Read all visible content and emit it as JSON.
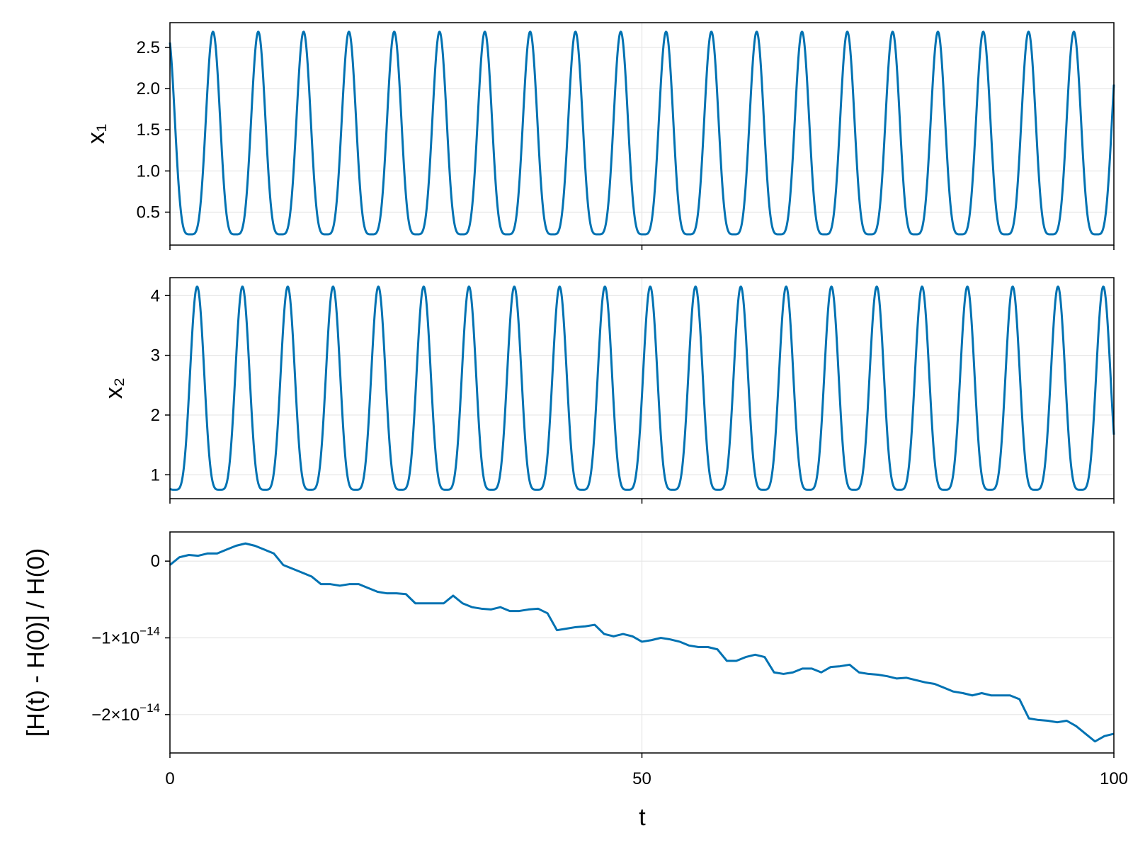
{
  "chart_data": [
    {
      "type": "line",
      "ylabel": "x₁",
      "xlabel": "",
      "xlim": [
        0,
        100
      ],
      "ylim": [
        0.1,
        2.8
      ],
      "x_ticks": [
        0,
        50,
        100
      ],
      "x_tick_labels_visible": false,
      "y_ticks": [
        0.5,
        1.0,
        1.5,
        2.0,
        2.5
      ],
      "y_tick_labels": [
        "0.5",
        "1.0",
        "1.5",
        "2.0",
        "2.5"
      ],
      "grid": true,
      "colors": {
        "line": "#0072b2"
      },
      "series": [
        {
          "model": "periodic",
          "period": 4.8,
          "x_start": 0,
          "x_end": 100,
          "y_start": 2.5,
          "min": 0.23,
          "max": 2.69,
          "phase": 0.05
        }
      ]
    },
    {
      "type": "line",
      "ylabel": "x₂",
      "xlabel": "",
      "xlim": [
        0,
        100
      ],
      "ylim": [
        0.6,
        4.3
      ],
      "x_ticks": [
        0,
        50,
        100
      ],
      "x_tick_labels_visible": false,
      "y_ticks": [
        1,
        2,
        3,
        4
      ],
      "y_tick_labels": [
        "1",
        "2",
        "3",
        "4"
      ],
      "grid": true,
      "colors": {
        "line": "#0072b2"
      },
      "series": [
        {
          "model": "periodic",
          "period": 4.8,
          "x_start": 0,
          "x_end": 100,
          "y_start": 1.0,
          "min": 0.75,
          "max": 4.15,
          "phase": 0.4
        }
      ]
    },
    {
      "type": "line",
      "ylabel": "[H(t) - H(0)] / H(0)",
      "xlabel": "t",
      "xlim": [
        0,
        100
      ],
      "ylim": [
        -2.5e-14,
        3.8e-15
      ],
      "x_ticks": [
        0,
        50,
        100
      ],
      "x_tick_labels": [
        "0",
        "50",
        "100"
      ],
      "x_tick_labels_visible": true,
      "y_ticks": [
        0,
        -1e-14,
        -2e-14
      ],
      "y_tick_labels": [
        {
          "mantissa": "0",
          "exponent": ""
        },
        {
          "mantissa": "−1×10",
          "exponent": "−14"
        },
        {
          "mantissa": "−2×10",
          "exponent": "−14"
        }
      ],
      "grid": true,
      "colors": {
        "line": "#0072b2"
      },
      "series": [
        {
          "x": [
            0,
            1,
            2,
            3,
            4,
            5,
            6,
            7,
            8,
            9,
            10,
            11,
            12,
            13,
            14,
            15,
            16,
            17,
            18,
            19,
            20,
            21,
            22,
            23,
            24,
            25,
            26,
            27,
            28,
            29,
            30,
            31,
            32,
            33,
            34,
            35,
            36,
            37,
            38,
            39,
            40,
            41,
            42,
            43,
            44,
            45,
            46,
            47,
            48,
            49,
            50,
            51,
            52,
            53,
            54,
            55,
            56,
            57,
            58,
            59,
            60,
            61,
            62,
            63,
            64,
            65,
            66,
            67,
            68,
            69,
            70,
            71,
            72,
            73,
            74,
            75,
            76,
            77,
            78,
            79,
            80,
            81,
            82,
            83,
            84,
            85,
            86,
            87,
            88,
            89,
            90,
            91,
            92,
            93,
            94,
            95,
            96,
            97,
            98,
            99,
            100
          ],
          "y": [
            -5e-16,
            5e-16,
            8e-16,
            7e-16,
            1e-15,
            1e-15,
            1.5e-15,
            2e-15,
            2.3e-15,
            2e-15,
            1.5e-15,
            1e-15,
            -5e-16,
            -1e-15,
            -1.5e-15,
            -2e-15,
            -3e-15,
            -3e-15,
            -3.2e-15,
            -3e-15,
            -3e-15,
            -3.5e-15,
            -4e-15,
            -4.2e-15,
            -4.2e-15,
            -4.3e-15,
            -5.5e-15,
            -5.5e-15,
            -5.5e-15,
            -5.5e-15,
            -4.5e-15,
            -5.5e-15,
            -6e-15,
            -6.2e-15,
            -6.3e-15,
            -6e-15,
            -6.5e-15,
            -6.5e-15,
            -6.3e-15,
            -6.2e-15,
            -6.8e-15,
            -9e-15,
            -8.8e-15,
            -8.6e-15,
            -8.5e-15,
            -8.3e-15,
            -9.5e-15,
            -9.8e-15,
            -9.5e-15,
            -9.8e-15,
            -1.05e-14,
            -1.03e-14,
            -1e-14,
            -1.02e-14,
            -1.05e-14,
            -1.1e-14,
            -1.12e-14,
            -1.12e-14,
            -1.15e-14,
            -1.3e-14,
            -1.3e-14,
            -1.25e-14,
            -1.22e-14,
            -1.25e-14,
            -1.45e-14,
            -1.47e-14,
            -1.45e-14,
            -1.4e-14,
            -1.4e-14,
            -1.45e-14,
            -1.38e-14,
            -1.37e-14,
            -1.35e-14,
            -1.45e-14,
            -1.47e-14,
            -1.48e-14,
            -1.5e-14,
            -1.53e-14,
            -1.52e-14,
            -1.55e-14,
            -1.58e-14,
            -1.6e-14,
            -1.65e-14,
            -1.7e-14,
            -1.72e-14,
            -1.75e-14,
            -1.72e-14,
            -1.75e-14,
            -1.75e-14,
            -1.75e-14,
            -1.8e-14,
            -2.05e-14,
            -2.07e-14,
            -2.08e-14,
            -2.1e-14,
            -2.08e-14,
            -2.15e-14,
            -2.25e-14,
            -2.35e-14,
            -2.28e-14,
            -2.25e-14
          ]
        }
      ]
    }
  ]
}
